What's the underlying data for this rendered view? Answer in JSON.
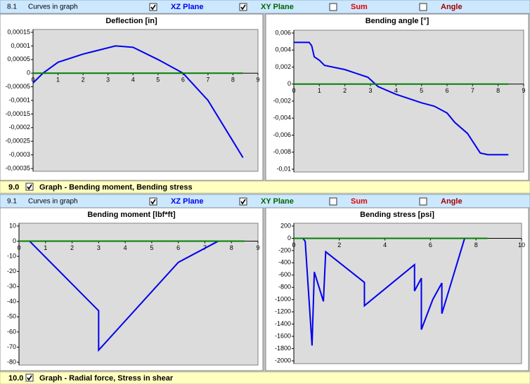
{
  "sections": [
    {
      "number": "8.1",
      "label": "Curves in graph",
      "options": [
        {
          "name": "XZ Plane",
          "checked": true
        },
        {
          "name": "XY Plane",
          "checked": true
        },
        {
          "name": "Sum",
          "checked": false
        },
        {
          "name": "Angle",
          "checked": false
        }
      ]
    },
    {
      "number": "9.1",
      "label": "Curves in graph",
      "options": [
        {
          "name": "XZ Plane",
          "checked": true
        },
        {
          "name": "XY Plane",
          "checked": true
        },
        {
          "name": "Sum",
          "checked": false
        },
        {
          "name": "Angle",
          "checked": false
        }
      ]
    }
  ],
  "groups": [
    {
      "number": "9.0",
      "checked": true,
      "label": "Graph - Bending moment, Bending stress"
    },
    {
      "number": "10.0",
      "checked": true,
      "label": "Graph - Radial force, Stress in shear"
    }
  ],
  "chart_data": [
    {
      "type": "line",
      "title": "Deflection [in]",
      "xlim": [
        0,
        9
      ],
      "xticks": [
        0,
        1,
        2,
        3,
        4,
        5,
        6,
        7,
        8,
        9
      ],
      "ylim": [
        -0.00035,
        0.00015
      ],
      "yticks": [
        {
          "value": 0.00015,
          "label": "0,00015"
        },
        {
          "value": 0.0001,
          "label": "0,0001"
        },
        {
          "value": 5e-05,
          "label": "0,00005"
        },
        0,
        {
          "value": -5e-05,
          "label": "-0,00005"
        },
        {
          "value": -0.0001,
          "label": "-0,0001"
        },
        {
          "value": -0.00015,
          "label": "-0,00015"
        },
        {
          "value": -0.0002,
          "label": "-0,0002"
        },
        {
          "value": -0.00025,
          "label": "-0,00025"
        },
        {
          "value": -0.0003,
          "label": "-0,0003"
        },
        {
          "value": -0.00035,
          "label": "-0,00035"
        }
      ],
      "series": [
        {
          "name": "XZ Plane",
          "color": "#0000ee",
          "x": [
            0,
            0.4,
            1,
            2,
            3.3,
            4,
            5,
            6,
            7,
            8,
            8.4
          ],
          "values": [
            -3.6e-05,
            0,
            4e-05,
            7e-05,
            0.0001,
            9.5e-05,
            5e-05,
            0,
            -0.0001,
            -0.00025,
            -0.00031
          ]
        },
        {
          "name": "XY Plane",
          "color": "#008000",
          "x": [
            0,
            8.4
          ],
          "values": [
            0,
            0
          ]
        }
      ]
    },
    {
      "type": "line",
      "title": "Bending angle [°]",
      "xlim": [
        0,
        9
      ],
      "xticks": [
        0,
        1,
        2,
        3,
        4,
        5,
        6,
        7,
        8,
        9
      ],
      "ylim": [
        -0.01,
        0.006
      ],
      "yticks": [
        {
          "value": 0.006,
          "label": "0,006"
        },
        {
          "value": 0.004,
          "label": "0,004"
        },
        {
          "value": 0.002,
          "label": "0,002"
        },
        0,
        {
          "value": -0.002,
          "label": "-0,002"
        },
        {
          "value": -0.004,
          "label": "-0,004"
        },
        {
          "value": -0.006,
          "label": "-0,006"
        },
        {
          "value": -0.008,
          "label": "-0,008"
        },
        {
          "value": -0.01,
          "label": "-0,01"
        }
      ],
      "series": [
        {
          "name": "XZ Plane",
          "color": "#0000ee",
          "x": [
            0,
            0.6,
            0.7,
            0.8,
            1,
            1.2,
            2,
            2.9,
            3.3,
            4,
            5,
            5.5,
            6,
            6.3,
            6.8,
            7.3,
            7.6,
            8.4
          ],
          "values": [
            0.0049,
            0.0049,
            0.0045,
            0.0032,
            0.0028,
            0.0022,
            0.0017,
            0.0008,
            -0.0003,
            -0.0012,
            -0.0022,
            -0.0026,
            -0.0034,
            -0.0045,
            -0.0058,
            -0.0081,
            -0.0083,
            -0.0083
          ]
        },
        {
          "name": "XY Plane",
          "color": "#008000",
          "x": [
            0,
            8.4
          ],
          "values": [
            0,
            0
          ]
        }
      ]
    },
    {
      "type": "line",
      "title": "Bending moment [lbf*ft]",
      "xlim": [
        0,
        9
      ],
      "xticks": [
        0,
        1,
        2,
        3,
        4,
        5,
        6,
        7,
        8,
        9
      ],
      "ylim": [
        -80,
        10
      ],
      "yticks": [
        10,
        0,
        -10,
        -20,
        -30,
        -40,
        -50,
        -60,
        -70,
        -80
      ],
      "series": [
        {
          "name": "XZ Plane",
          "color": "#0000ee",
          "x": [
            0.4,
            3,
            3,
            6,
            7.5
          ],
          "values": [
            0,
            -46,
            -72,
            -14,
            0
          ]
        },
        {
          "name": "XY Plane",
          "color": "#008000",
          "x": [
            0,
            8.5
          ],
          "values": [
            0,
            0
          ]
        }
      ]
    },
    {
      "type": "line",
      "title": "Bending stress [psi]",
      "xlim": [
        0,
        10
      ],
      "xticks": [
        0,
        2,
        4,
        6,
        8,
        10
      ],
      "ylim": [
        -2000,
        200
      ],
      "yticks": [
        200,
        0,
        -200,
        -400,
        -600,
        -800,
        -1000,
        -1200,
        -1400,
        -1600,
        -1800,
        -2000
      ],
      "series": [
        {
          "name": "XZ Plane",
          "color": "#0000ee",
          "x": [
            0.4,
            0.5,
            0.8,
            0.9,
            1.3,
            1.4,
            3.1,
            3.1,
            5.3,
            5.3,
            5.6,
            5.6,
            6.1,
            6.5,
            6.5,
            7.5
          ],
          "values": [
            0,
            -50,
            -1750,
            -550,
            -1030,
            -220,
            -720,
            -1100,
            -430,
            -860,
            -650,
            -1490,
            -1000,
            -730,
            -1230,
            0
          ]
        },
        {
          "name": "XY Plane",
          "color": "#008000",
          "x": [
            0,
            8.5
          ],
          "values": [
            0,
            0
          ]
        }
      ]
    }
  ]
}
